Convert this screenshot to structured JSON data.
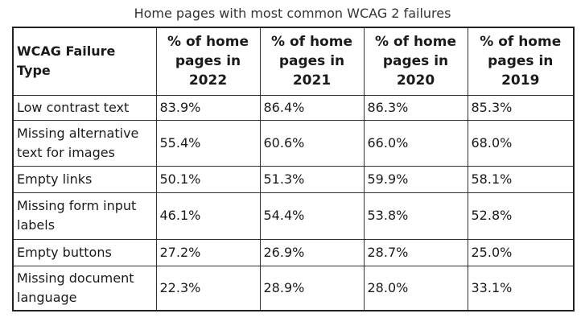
{
  "title": "Home pages with most common WCAG 2 failures",
  "chart_data": {
    "type": "table",
    "columns": [
      "WCAG Failure Type",
      "% of home pages in 2022",
      "% of home pages in 2021",
      "% of home pages in 2020",
      "% of home pages in 2019"
    ],
    "rows": [
      [
        "Low contrast text",
        "83.9%",
        "86.4%",
        "86.3%",
        "85.3%"
      ],
      [
        "Missing alternative text for images",
        "55.4%",
        "60.6%",
        "66.0%",
        "68.0%"
      ],
      [
        "Empty links",
        "50.1%",
        "51.3%",
        "59.9%",
        "58.1%"
      ],
      [
        "Missing form input labels",
        "46.1%",
        "54.4%",
        "53.8%",
        "52.8%"
      ],
      [
        "Empty buttons",
        "27.2%",
        "26.9%",
        "28.7%",
        "25.0%"
      ],
      [
        "Missing document language",
        "22.3%",
        "28.9%",
        "28.0%",
        "33.1%"
      ]
    ]
  }
}
